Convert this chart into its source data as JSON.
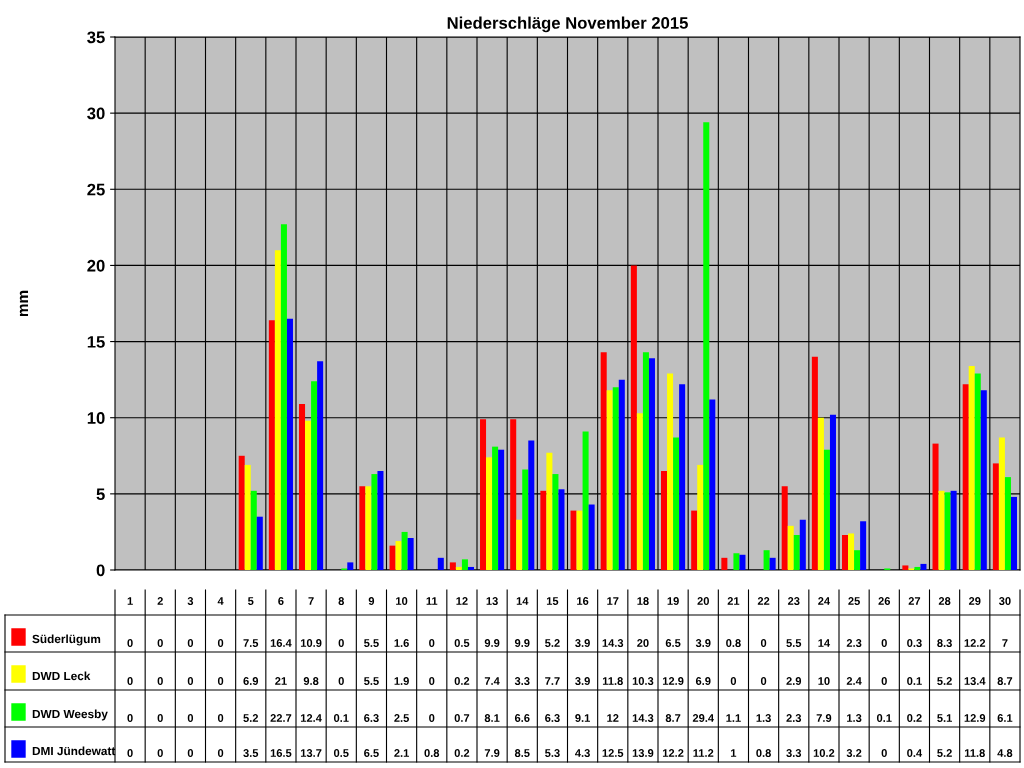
{
  "chart_data": {
    "type": "bar",
    "title": "Niederschläge November 2015",
    "ylabel": "mm",
    "categories": [
      "1",
      "2",
      "3",
      "4",
      "5",
      "6",
      "7",
      "8",
      "9",
      "10",
      "11",
      "12",
      "13",
      "14",
      "15",
      "16",
      "17",
      "18",
      "19",
      "20",
      "21",
      "22",
      "23",
      "24",
      "25",
      "26",
      "27",
      "28",
      "29",
      "30"
    ],
    "series": [
      {
        "name": "Süderlügum",
        "color": "#ff0000",
        "values": [
          0,
          0,
          0,
          0,
          7.5,
          16.4,
          10.9,
          0,
          5.5,
          1.6,
          0,
          0.5,
          9.9,
          9.9,
          5.2,
          3.9,
          14.3,
          20,
          6.5,
          3.9,
          0.8,
          0,
          5.5,
          14,
          2.3,
          0,
          0.3,
          8.3,
          12.2,
          7
        ]
      },
      {
        "name": "DWD Leck",
        "color": "#ffff00",
        "values": [
          0,
          0,
          0,
          0,
          6.9,
          21,
          9.8,
          0,
          5.5,
          1.9,
          0,
          0.2,
          7.4,
          3.3,
          7.7,
          3.9,
          11.8,
          10.3,
          12.9,
          6.9,
          0,
          0,
          2.9,
          10,
          2.4,
          0,
          0.1,
          5.2,
          13.4,
          8.7
        ]
      },
      {
        "name": "DWD Weesby",
        "color": "#00ff00",
        "values": [
          0,
          0,
          0,
          0,
          5.2,
          22.7,
          12.4,
          0.1,
          6.3,
          2.5,
          0,
          0.7,
          8.1,
          6.6,
          6.3,
          9.1,
          12,
          14.3,
          8.7,
          29.4,
          1.1,
          1.3,
          2.3,
          7.9,
          1.3,
          0.1,
          0.2,
          5.1,
          12.9,
          6.1
        ]
      },
      {
        "name": "DMI Jündewatt",
        "color": "#0000ff",
        "values": [
          0,
          0,
          0,
          0,
          3.5,
          16.5,
          13.7,
          0.5,
          6.5,
          2.1,
          0.8,
          0.2,
          7.9,
          8.5,
          5.3,
          4.3,
          12.5,
          13.9,
          12.2,
          11.2,
          1,
          0.8,
          3.3,
          10.2,
          3.2,
          0,
          0.4,
          5.2,
          11.8,
          4.8
        ]
      }
    ],
    "ylim": [
      0,
      35
    ],
    "yticks": [
      0,
      5,
      10,
      15,
      20,
      25,
      30,
      35
    ],
    "grid": true,
    "data_labels": true,
    "legend": "bottom left"
  }
}
